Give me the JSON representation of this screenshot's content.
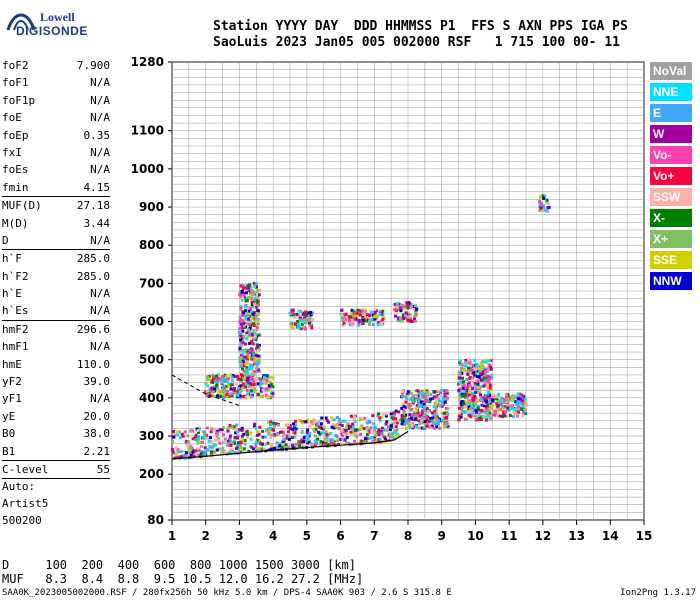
{
  "logo": {
    "line1": "Lowell",
    "line2": "DIGISONDE"
  },
  "header": {
    "row1": "Station YYYY DAY  DDD HHMMSS P1  FFS S AXN PPS IGA PS",
    "row2": "SaoLuis 2023 Jan05 005 002000 RSF   1 715 100 00- 11"
  },
  "params": [
    {
      "name": "foF2",
      "value": "7.900"
    },
    {
      "name": "foF1",
      "value": "N/A"
    },
    {
      "name": "foF1p",
      "value": "N/A"
    },
    {
      "name": "foE",
      "value": "N/A"
    },
    {
      "name": "foEp",
      "value": "0.35"
    },
    {
      "name": "fxI",
      "value": "N/A"
    },
    {
      "name": "foEs",
      "value": "N/A"
    },
    {
      "name": "fmin",
      "value": "4.15",
      "sep": true
    },
    {
      "name": "MUF(D)",
      "value": "27.18"
    },
    {
      "name": "M(D)",
      "value": "3.44"
    },
    {
      "name": "D",
      "value": "N/A",
      "sep": true
    },
    {
      "name": "h`F",
      "value": "285.0"
    },
    {
      "name": "h`F2",
      "value": "285.0"
    },
    {
      "name": "h`E",
      "value": "N/A"
    },
    {
      "name": "h`Es",
      "value": "N/A",
      "sep": true
    },
    {
      "name": "hmF2",
      "value": "296.6"
    },
    {
      "name": "hmF1",
      "value": "N/A"
    },
    {
      "name": "hmE",
      "value": "110.0"
    },
    {
      "name": "yF2",
      "value": "39.0"
    },
    {
      "name": "yF1",
      "value": "N/A"
    },
    {
      "name": "yE",
      "value": "20.0"
    },
    {
      "name": "B0",
      "value": "38.0"
    },
    {
      "name": "B1",
      "value": "2.21",
      "sep": true
    },
    {
      "name": "C-level",
      "value": "55",
      "sep": true
    }
  ],
  "autoscale": {
    "line1": "Auto:",
    "line2": "Artist5",
    "line3": "500200"
  },
  "legend": [
    {
      "label": "NoVal",
      "color": "#a0a0a0"
    },
    {
      "label": "NNE",
      "color": "#00e0ff"
    },
    {
      "label": "E",
      "color": "#40a8ff"
    },
    {
      "label": "W",
      "color": "#a000a0"
    },
    {
      "label": "Vo-",
      "color": "#ff40b0"
    },
    {
      "label": "Vo+",
      "color": "#ff0040"
    },
    {
      "label": "SSW",
      "color": "#ffb0a8"
    },
    {
      "label": "X-",
      "color": "#008000"
    },
    {
      "label": "X+",
      "color": "#80c060"
    },
    {
      "label": "SSE",
      "color": "#d0d000"
    },
    {
      "label": "NNW",
      "color": "#0000d0"
    }
  ],
  "dmuf": {
    "row1": "D     100  200  400  600  800 1000 1500 3000 [km]",
    "row2": "MUF   8.3  8.4  8.8  9.5 10.5 12.0 16.2 27.2 [MHz]"
  },
  "footer": {
    "left": "SAA0K_2023005002000.RSF / 280fx256h 50 kHz 5.0 km / DPS-4 SAA0K 903 / 2.6 S 315.8 E",
    "right": "Ion2Png 1.3.17"
  },
  "chart_data": {
    "type": "scatter",
    "xlim": [
      1,
      15
    ],
    "ylim": [
      80,
      1280
    ],
    "x_ticks": [
      1,
      2,
      3,
      4,
      5,
      6,
      7,
      8,
      9,
      10,
      11,
      12,
      13,
      14,
      15
    ],
    "y_ticks": [
      80,
      200,
      300,
      400,
      500,
      600,
      700,
      800,
      900,
      1000,
      1100,
      1280
    ],
    "grid": true,
    "trace_profile": {
      "x": [
        1.0,
        2.0,
        3.0,
        4.0,
        5.0,
        6.0,
        7.0,
        7.6,
        8.0
      ],
      "y": [
        240,
        247,
        255,
        263,
        270,
        276,
        282,
        290,
        312
      ]
    },
    "upper_profile": {
      "x": [
        1.0,
        1.5,
        2.0,
        2.5,
        3.0
      ],
      "y": [
        460,
        435,
        410,
        395,
        380
      ]
    },
    "echo_clusters": [
      {
        "x": [
          1.0,
          7.8
        ],
        "y": [
          240,
          330
        ]
      },
      {
        "x": [
          2.0,
          4.0
        ],
        "y": [
          400,
          460
        ]
      },
      {
        "x": [
          3.0,
          3.6
        ],
        "y": [
          460,
          700
        ]
      },
      {
        "x": [
          4.5,
          5.2
        ],
        "y": [
          580,
          630
        ]
      },
      {
        "x": [
          6.0,
          7.3
        ],
        "y": [
          590,
          630
        ]
      },
      {
        "x": [
          7.6,
          8.3
        ],
        "y": [
          600,
          650
        ]
      },
      {
        "x": [
          7.8,
          9.2
        ],
        "y": [
          320,
          420
        ]
      },
      {
        "x": [
          9.5,
          10.5
        ],
        "y": [
          340,
          500
        ]
      },
      {
        "x": [
          10.3,
          11.5
        ],
        "y": [
          350,
          410
        ]
      },
      {
        "x": [
          11.9,
          12.2
        ],
        "y": [
          890,
          930
        ]
      }
    ]
  }
}
